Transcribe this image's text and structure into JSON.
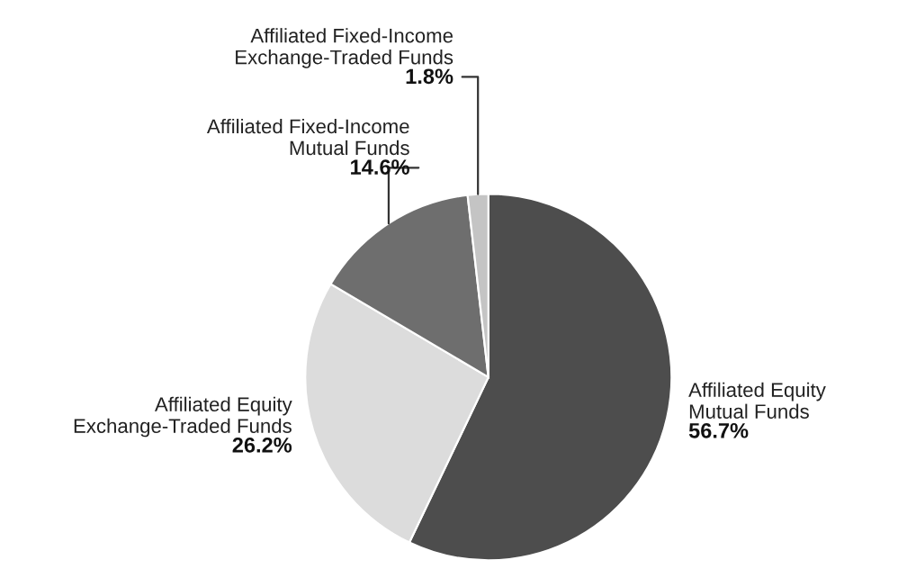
{
  "chart_data": {
    "type": "pie",
    "categories": [
      "Affiliated Equity\nMutual Funds",
      "Affiliated Equity\nExchange-Traded Funds",
      "Affiliated Fixed-Income\nMutual Funds",
      "Affiliated Fixed-Income\nExchange-Traded Funds"
    ],
    "values": [
      56.7,
      26.2,
      14.6,
      1.8
    ],
    "value_labels": [
      "56.7%",
      "26.2%",
      "14.6%",
      "1.8%"
    ],
    "colors": [
      "#4d4d4d",
      "#dcdcdc",
      "#6e6e6e",
      "#c4c4c4"
    ]
  }
}
